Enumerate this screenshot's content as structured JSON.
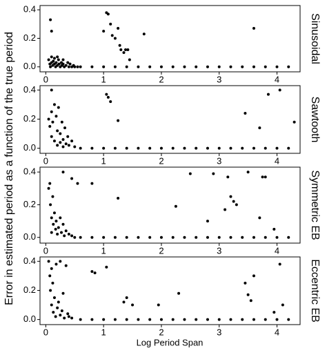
{
  "chart_data": [
    {
      "type": "scatter",
      "title": "Sinusoidal",
      "ylabel": "Error in estimated period as a function of the true period",
      "xlim": [
        -0.1,
        4.4
      ],
      "ylim": [
        -0.035,
        0.43
      ],
      "xticks": [
        0,
        1,
        2,
        3,
        4
      ],
      "yticks": [
        {
          "value": 0,
          "label": "0.0"
        },
        0.2,
        0.4
      ],
      "color": "#000000",
      "x": [
        0.05,
        0.07,
        0.08,
        0.1,
        0.1,
        0.12,
        0.13,
        0.15,
        0.15,
        0.17,
        0.18,
        0.2,
        0.22,
        0.23,
        0.25,
        0.27,
        0.28,
        0.3,
        0.32,
        0.35,
        0.38,
        0.4,
        0.42,
        0.45,
        0.48,
        0.5,
        0.55,
        0.08,
        0.1,
        0.2,
        0.3,
        1.0,
        1.05,
        1.08,
        1.12,
        1.15,
        1.2,
        1.25,
        1.28,
        1.3,
        1.35,
        1.38,
        1.42,
        1.45,
        1.7,
        3.6,
        0.6,
        0.8,
        1.0,
        1.2,
        1.4,
        1.6,
        1.8,
        2.0,
        2.2,
        2.4,
        2.6,
        2.8,
        3.0,
        3.2,
        3.4,
        3.6,
        3.8,
        4.0,
        4.2
      ],
      "y": [
        0.05,
        0.02,
        0,
        0.03,
        0.07,
        0.01,
        0.04,
        0.02,
        0.06,
        0,
        0.03,
        0.01,
        0.05,
        0.02,
        0,
        0.03,
        0.01,
        0.02,
        0,
        0.01,
        0.03,
        0,
        0.02,
        0,
        0.01,
        0,
        0,
        0.33,
        0.25,
        0.07,
        0.05,
        0.25,
        0.38,
        0.37,
        0.3,
        0.22,
        0.2,
        0.27,
        0.15,
        0.12,
        0.1,
        0.12,
        0.12,
        0.05,
        0.23,
        0.27,
        0,
        0,
        0,
        0,
        0,
        0,
        0,
        0,
        0,
        0,
        0,
        0,
        0,
        0,
        0,
        0,
        0,
        0,
        0
      ]
    },
    {
      "type": "scatter",
      "title": "Sawtooth",
      "xlim": [
        -0.1,
        4.4
      ],
      "ylim": [
        -0.035,
        0.43
      ],
      "xticks": [
        0,
        1,
        2,
        3,
        4
      ],
      "yticks": [
        {
          "value": 0,
          "label": "0.0"
        },
        0.2,
        0.4
      ],
      "color": "#000000",
      "x": [
        0.05,
        0.07,
        0.1,
        0.1,
        0.12,
        0.15,
        0.15,
        0.18,
        0.2,
        0.2,
        0.22,
        0.25,
        0.25,
        0.28,
        0.3,
        0.3,
        0.33,
        0.35,
        0.38,
        0.4,
        0.45,
        0.5,
        0.1,
        1.05,
        1.08,
        1.12,
        1.25,
        3.45,
        3.7,
        3.85,
        4.05,
        4.3,
        0.6,
        0.8,
        1.0,
        1.2,
        1.4,
        1.6,
        1.8,
        2.0,
        2.2,
        2.4,
        2.6,
        2.8,
        3.0,
        3.2,
        3.4,
        3.6,
        3.8,
        4.0,
        4.2
      ],
      "y": [
        0.2,
        0.15,
        0.25,
        0.08,
        0.18,
        0.3,
        0.05,
        0.22,
        0.12,
        0.02,
        0.28,
        0.1,
        0.04,
        0.18,
        0.06,
        0.01,
        0.14,
        0.03,
        0.08,
        0.02,
        0.05,
        0.01,
        0.4,
        0.37,
        0.35,
        0.32,
        0.19,
        0.24,
        0.14,
        0.37,
        0.4,
        0.18,
        0,
        0,
        0,
        0,
        0,
        0,
        0,
        0,
        0,
        0,
        0,
        0,
        0,
        0,
        0,
        0,
        0,
        0,
        0
      ]
    },
    {
      "type": "scatter",
      "title": "Symmetric EB",
      "xlim": [
        -0.1,
        4.4
      ],
      "ylim": [
        -0.035,
        0.43
      ],
      "xticks": [
        0,
        1,
        2,
        3,
        4
      ],
      "yticks": [
        {
          "value": 0,
          "label": "0.0"
        },
        0.2,
        0.4
      ],
      "color": "#000000",
      "x": [
        0.05,
        0.07,
        0.08,
        0.1,
        0.1,
        0.12,
        0.13,
        0.15,
        0.17,
        0.18,
        0.2,
        0.22,
        0.25,
        0.27,
        0.3,
        0.32,
        0.35,
        0.4,
        0.45,
        0.5,
        0.3,
        0.45,
        0.55,
        0.8,
        1.25,
        2.25,
        2.5,
        2.8,
        2.9,
        3.1,
        3.15,
        3.2,
        3.25,
        3.3,
        3.5,
        3.7,
        3.75,
        3.8,
        3.95,
        0.6,
        0.8,
        1.0,
        1.2,
        1.4,
        1.6,
        1.8,
        2.0,
        2.2,
        2.4,
        2.6,
        2.8,
        3.0,
        3.2,
        3.4,
        3.6,
        3.8,
        4.0,
        4.2
      ],
      "y": [
        0.3,
        0.33,
        0.2,
        0.12,
        0.03,
        0.25,
        0.08,
        0.15,
        0.05,
        0.1,
        0.02,
        0.06,
        0.12,
        0.03,
        0.08,
        0.01,
        0.04,
        0.02,
        0.01,
        0,
        0.4,
        0.36,
        0.33,
        0.33,
        0.24,
        0.19,
        0.39,
        0.1,
        0.39,
        0.17,
        0.37,
        0.25,
        0.22,
        0.2,
        0.4,
        0.12,
        0.37,
        0.37,
        0.05,
        0,
        0,
        0,
        0,
        0,
        0,
        0,
        0,
        0,
        0,
        0,
        0,
        0,
        0,
        0,
        0,
        0,
        0,
        0
      ]
    },
    {
      "type": "scatter",
      "title": "Eccentric EB",
      "xlabel": "Log Period Span",
      "xlim": [
        -0.1,
        4.4
      ],
      "ylim": [
        -0.035,
        0.43
      ],
      "xticks": [
        0,
        1,
        2,
        3,
        4
      ],
      "yticks": [
        {
          "value": 0,
          "label": "0.0"
        },
        0.2,
        0.4
      ],
      "color": "#000000",
      "x": [
        0.05,
        0.07,
        0.08,
        0.1,
        0.1,
        0.12,
        0.13,
        0.15,
        0.17,
        0.18,
        0.2,
        0.22,
        0.25,
        0.25,
        0.28,
        0.3,
        0.32,
        0.35,
        0.38,
        0.4,
        0.45,
        0.8,
        0.85,
        1.05,
        1.35,
        1.4,
        1.5,
        1.95,
        2.3,
        3.45,
        3.5,
        3.55,
        3.6,
        3.95,
        4.05,
        4.1,
        0.6,
        0.8,
        1.0,
        1.2,
        1.4,
        1.6,
        1.8,
        2.0,
        2.2,
        2.4,
        2.6,
        2.8,
        3.0,
        3.2,
        3.4,
        3.6,
        3.8,
        4.0,
        4.2
      ],
      "y": [
        0.4,
        0.3,
        0.2,
        0.35,
        0.1,
        0.25,
        0.05,
        0.15,
        0.02,
        0.38,
        0.08,
        0.12,
        0.4,
        0.03,
        0.06,
        0.18,
        0.01,
        0.37,
        0.04,
        0.02,
        0.01,
        0.33,
        0.32,
        0.36,
        0.12,
        0.15,
        0.1,
        0.1,
        0.18,
        0.25,
        0.17,
        0.13,
        0.3,
        0.05,
        0.38,
        0.1,
        0,
        0,
        0,
        0,
        0,
        0,
        0,
        0,
        0,
        0,
        0,
        0,
        0,
        0,
        0,
        0,
        0,
        0,
        0
      ]
    }
  ]
}
